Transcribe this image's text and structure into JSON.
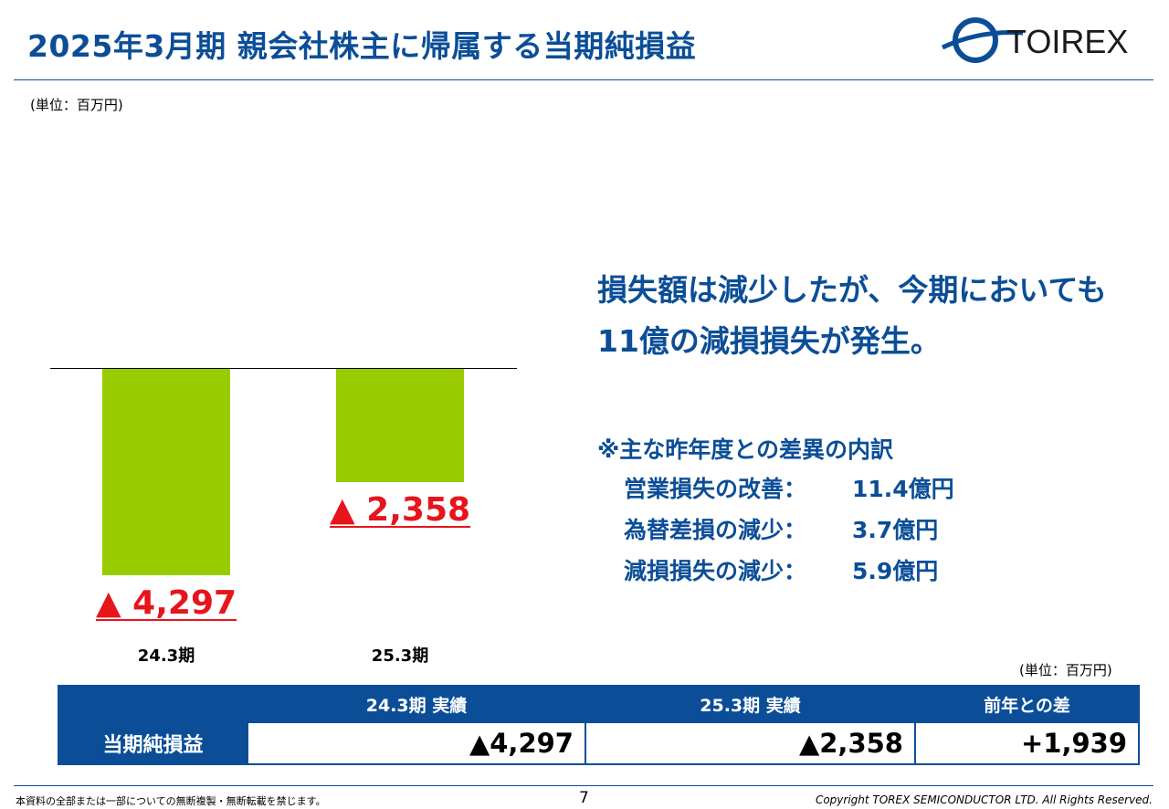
{
  "header": {
    "title": "2025年3月期 親会社株主に帰属する当期純損益",
    "logo_text": "TOIREX"
  },
  "unit_top": "(単位：百万円)",
  "chart_data": {
    "type": "bar",
    "categories": [
      "24.3期",
      "25.3期"
    ],
    "values": [
      -4297,
      -2358
    ],
    "data_labels": [
      "▲ 4,297",
      "▲ 2,358"
    ],
    "colors": {
      "bar": "#99cc00",
      "label": "#e8141b"
    }
  },
  "commentary": {
    "headline_line1": "損失額は減少したが、今期においても",
    "headline_line2": "11億の減損損失が発生。",
    "breakdown_title": "※主な昨年度との差異の内訳",
    "items": [
      {
        "label": "営業損失の改善：",
        "value": "11.4億円"
      },
      {
        "label": "為替差損の減少：",
        "value": "3.7億円"
      },
      {
        "label": "減損損失の減少：",
        "value": "5.9億円"
      }
    ]
  },
  "table": {
    "unit": "(単位：百万円)",
    "headers": [
      "",
      "24.3期 実績",
      "25.3期 実績",
      "前年との差"
    ],
    "row_label": "当期純損益",
    "values": [
      "▲4,297",
      "▲2,358",
      "+1,939"
    ]
  },
  "footer": {
    "notice": "本資料の全部または一部についての無断複製・無断転載を禁じます。",
    "page": "7",
    "copyright": "Copyright TOREX SEMICONDUCTOR LTD.  All Rights Reserved."
  },
  "colors": {
    "brand": "#0b4e97",
    "negative": "#e8141b"
  }
}
